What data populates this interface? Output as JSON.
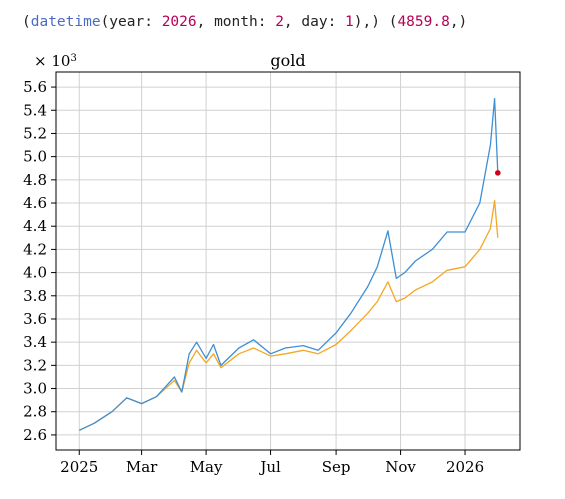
{
  "code": {
    "open_paren": "(",
    "fn_name": "datetime",
    "args_open": "(year: ",
    "year": "2026",
    "month_label": ", month: ",
    "month": "2",
    "day_label": ", day: ",
    "day": "1",
    "args_close": "),)",
    "space": " ",
    "value_open": "(",
    "value": "4859.8",
    "value_close": ",)"
  },
  "colors": {
    "series_blue": "#3d8fd6",
    "series_orange": "#f5a623",
    "highlight_point": "#d0021b",
    "grid": "#d0d0d0",
    "axis": "#000000"
  },
  "chart_data": {
    "type": "line",
    "title": "gold",
    "y_multiplier_label": "× 10",
    "y_multiplier_exp": "3",
    "x_ticks": [
      "2025",
      "Mar",
      "May",
      "Jul",
      "Sep",
      "Nov",
      "2026"
    ],
    "x_tick_dates": [
      "2025-01-01",
      "2025-03-01",
      "2025-05-01",
      "2025-07-01",
      "2025-09-01",
      "2025-11-01",
      "2026-01-01"
    ],
    "xlim": [
      "2024-12-10",
      "2026-02-22"
    ],
    "y_ticks": [
      "2.6",
      "2.8",
      "3.0",
      "3.2",
      "3.4",
      "3.6",
      "3.8",
      "4.0",
      "4.2",
      "4.4",
      "4.6",
      "4.8",
      "5.0",
      "5.2",
      "5.4",
      "5.6"
    ],
    "y_tick_values": [
      2.6,
      2.8,
      3.0,
      3.2,
      3.4,
      3.6,
      3.8,
      4.0,
      4.2,
      4.4,
      4.6,
      4.8,
      5.0,
      5.2,
      5.4,
      5.6
    ],
    "ylim": [
      2.47,
      5.73
    ],
    "grid": true,
    "highlight": {
      "x": "2026-02-01",
      "y": 4.86
    },
    "series": [
      {
        "color_key": "series_blue",
        "points": [
          [
            "2025-01-01",
            2.64
          ],
          [
            "2025-01-15",
            2.7
          ],
          [
            "2025-02-01",
            2.8
          ],
          [
            "2025-02-15",
            2.92
          ],
          [
            "2025-03-01",
            2.87
          ],
          [
            "2025-03-15",
            2.93
          ],
          [
            "2025-04-01",
            3.1
          ],
          [
            "2025-04-08",
            2.97
          ],
          [
            "2025-04-15",
            3.3
          ],
          [
            "2025-04-22",
            3.4
          ],
          [
            "2025-05-01",
            3.26
          ],
          [
            "2025-05-08",
            3.38
          ],
          [
            "2025-05-15",
            3.2
          ],
          [
            "2025-06-01",
            3.35
          ],
          [
            "2025-06-15",
            3.42
          ],
          [
            "2025-07-01",
            3.3
          ],
          [
            "2025-07-15",
            3.35
          ],
          [
            "2025-08-01",
            3.37
          ],
          [
            "2025-08-15",
            3.33
          ],
          [
            "2025-09-01",
            3.48
          ],
          [
            "2025-09-15",
            3.65
          ],
          [
            "2025-10-01",
            3.88
          ],
          [
            "2025-10-10",
            4.05
          ],
          [
            "2025-10-20",
            4.36
          ],
          [
            "2025-10-28",
            3.95
          ],
          [
            "2025-11-05",
            4.0
          ],
          [
            "2025-11-15",
            4.1
          ],
          [
            "2025-12-01",
            4.2
          ],
          [
            "2025-12-15",
            4.35
          ],
          [
            "2026-01-01",
            4.35
          ],
          [
            "2026-01-15",
            4.6
          ],
          [
            "2026-01-25",
            5.1
          ],
          [
            "2026-01-29",
            5.5
          ],
          [
            "2026-02-01",
            4.86
          ]
        ]
      },
      {
        "color_key": "series_orange",
        "points": [
          [
            "2025-01-01",
            2.64
          ],
          [
            "2025-01-15",
            2.7
          ],
          [
            "2025-02-01",
            2.8
          ],
          [
            "2025-02-15",
            2.92
          ],
          [
            "2025-03-01",
            2.87
          ],
          [
            "2025-03-15",
            2.93
          ],
          [
            "2025-04-01",
            3.07
          ],
          [
            "2025-04-08",
            2.97
          ],
          [
            "2025-04-15",
            3.22
          ],
          [
            "2025-04-22",
            3.33
          ],
          [
            "2025-05-01",
            3.22
          ],
          [
            "2025-05-08",
            3.3
          ],
          [
            "2025-05-15",
            3.18
          ],
          [
            "2025-06-01",
            3.3
          ],
          [
            "2025-06-15",
            3.35
          ],
          [
            "2025-07-01",
            3.28
          ],
          [
            "2025-07-15",
            3.3
          ],
          [
            "2025-08-01",
            3.33
          ],
          [
            "2025-08-15",
            3.3
          ],
          [
            "2025-09-01",
            3.38
          ],
          [
            "2025-09-15",
            3.5
          ],
          [
            "2025-10-01",
            3.65
          ],
          [
            "2025-10-10",
            3.75
          ],
          [
            "2025-10-20",
            3.92
          ],
          [
            "2025-10-28",
            3.75
          ],
          [
            "2025-11-05",
            3.78
          ],
          [
            "2025-11-15",
            3.85
          ],
          [
            "2025-12-01",
            3.92
          ],
          [
            "2025-12-15",
            4.02
          ],
          [
            "2026-01-01",
            4.05
          ],
          [
            "2026-01-15",
            4.2
          ],
          [
            "2026-01-25",
            4.38
          ],
          [
            "2026-01-29",
            4.62
          ],
          [
            "2026-02-01",
            4.3
          ]
        ]
      }
    ]
  }
}
